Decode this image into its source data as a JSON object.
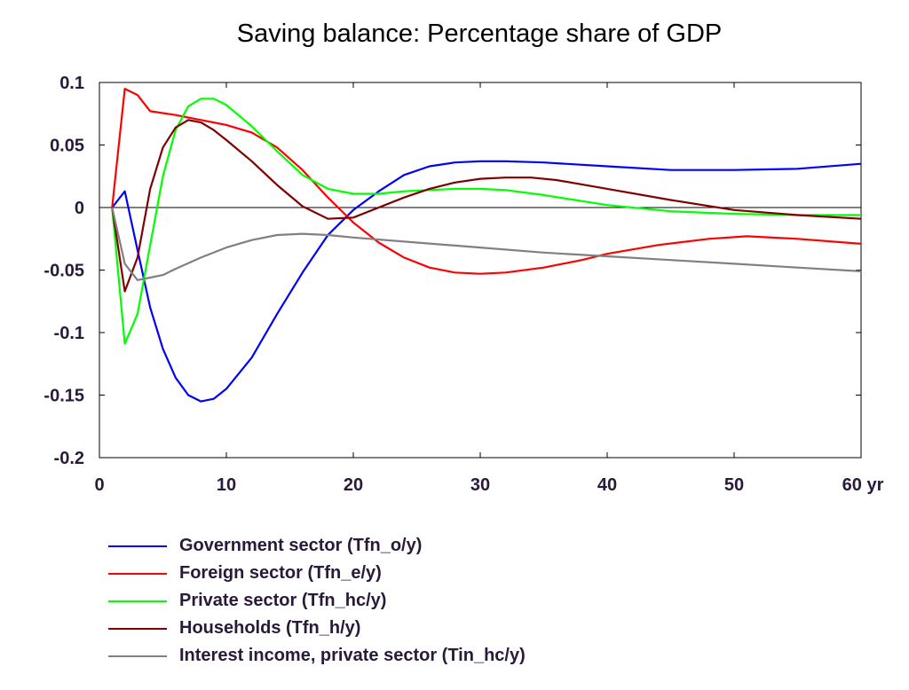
{
  "chart_data": {
    "type": "line",
    "title": "Saving balance: Percentage share of GDP",
    "xlabel": "",
    "ylabel": "",
    "xlim": [
      0,
      60
    ],
    "ylim": [
      -0.2,
      0.1
    ],
    "x_ticks": [
      "0",
      "10",
      "20",
      "30",
      "40",
      "50",
      "60 yr"
    ],
    "y_ticks": [
      "0.1",
      "0.05",
      "0",
      "-0.05",
      "-0.1",
      "-0.15",
      "-0.2"
    ],
    "legend_position": "bottom",
    "series": [
      {
        "name": "Government sector (Tfn_o/y)",
        "color": "#0000ff",
        "points": [
          [
            1,
            0
          ],
          [
            2,
            0.013
          ],
          [
            3,
            -0.034
          ],
          [
            4,
            -0.08
          ],
          [
            5,
            -0.113
          ],
          [
            6,
            -0.136
          ],
          [
            7,
            -0.15
          ],
          [
            8,
            -0.155
          ],
          [
            9,
            -0.153
          ],
          [
            10,
            -0.145
          ],
          [
            12,
            -0.12
          ],
          [
            14,
            -0.085
          ],
          [
            16,
            -0.052
          ],
          [
            18,
            -0.022
          ],
          [
            20,
            -0.002
          ],
          [
            22,
            0.013
          ],
          [
            24,
            0.026
          ],
          [
            26,
            0.033
          ],
          [
            28,
            0.036
          ],
          [
            30,
            0.037
          ],
          [
            32,
            0.037
          ],
          [
            35,
            0.036
          ],
          [
            40,
            0.033
          ],
          [
            45,
            0.03
          ],
          [
            50,
            0.03
          ],
          [
            55,
            0.031
          ],
          [
            60,
            0.035
          ]
        ]
      },
      {
        "name": "Foreign sector (Tfn_e/y)",
        "color": "#ff0000",
        "points": [
          [
            1,
            0
          ],
          [
            2,
            0.095
          ],
          [
            3,
            0.09
          ],
          [
            4,
            0.077
          ],
          [
            6,
            0.074
          ],
          [
            8,
            0.07
          ],
          [
            10,
            0.066
          ],
          [
            12,
            0.06
          ],
          [
            14,
            0.048
          ],
          [
            16,
            0.03
          ],
          [
            18,
            0.008
          ],
          [
            20,
            -0.012
          ],
          [
            22,
            -0.028
          ],
          [
            24,
            -0.04
          ],
          [
            26,
            -0.048
          ],
          [
            28,
            -0.052
          ],
          [
            30,
            -0.053
          ],
          [
            32,
            -0.052
          ],
          [
            35,
            -0.048
          ],
          [
            38,
            -0.042
          ],
          [
            40,
            -0.037
          ],
          [
            44,
            -0.03
          ],
          [
            48,
            -0.025
          ],
          [
            51,
            -0.023
          ],
          [
            55,
            -0.025
          ],
          [
            60,
            -0.029
          ]
        ]
      },
      {
        "name": "Private sector (Tfn_hc/y)",
        "color": "#00ff00",
        "points": [
          [
            1,
            0
          ],
          [
            2,
            -0.109
          ],
          [
            3,
            -0.085
          ],
          [
            4,
            -0.03
          ],
          [
            5,
            0.025
          ],
          [
            6,
            0.062
          ],
          [
            7,
            0.081
          ],
          [
            8,
            0.087
          ],
          [
            9,
            0.087
          ],
          [
            10,
            0.082
          ],
          [
            12,
            0.065
          ],
          [
            14,
            0.045
          ],
          [
            16,
            0.026
          ],
          [
            18,
            0.015
          ],
          [
            20,
            0.011
          ],
          [
            22,
            0.011
          ],
          [
            24,
            0.013
          ],
          [
            26,
            0.014
          ],
          [
            28,
            0.015
          ],
          [
            30,
            0.015
          ],
          [
            32,
            0.014
          ],
          [
            35,
            0.01
          ],
          [
            40,
            0.002
          ],
          [
            45,
            -0.003
          ],
          [
            50,
            -0.005
          ],
          [
            55,
            -0.006
          ],
          [
            60,
            -0.006
          ]
        ]
      },
      {
        "name": "Households (Tfn_h/y)",
        "color": "#800000",
        "points": [
          [
            1,
            0
          ],
          [
            2,
            -0.067
          ],
          [
            3,
            -0.04
          ],
          [
            4,
            0.015
          ],
          [
            5,
            0.048
          ],
          [
            6,
            0.064
          ],
          [
            7,
            0.07
          ],
          [
            8,
            0.068
          ],
          [
            9,
            0.062
          ],
          [
            10,
            0.054
          ],
          [
            12,
            0.037
          ],
          [
            14,
            0.018
          ],
          [
            16,
            0.001
          ],
          [
            18,
            -0.009
          ],
          [
            20,
            -0.008
          ],
          [
            22,
            0
          ],
          [
            24,
            0.008
          ],
          [
            26,
            0.015
          ],
          [
            28,
            0.02
          ],
          [
            30,
            0.023
          ],
          [
            32,
            0.024
          ],
          [
            34,
            0.024
          ],
          [
            36,
            0.022
          ],
          [
            40,
            0.015
          ],
          [
            45,
            0.006
          ],
          [
            50,
            -0.002
          ],
          [
            55,
            -0.006
          ],
          [
            60,
            -0.009
          ]
        ]
      },
      {
        "name": "Interest income, private sector (Tin_hc/y)",
        "color": "#808080",
        "points": [
          [
            1,
            0
          ],
          [
            2,
            -0.045
          ],
          [
            3,
            -0.058
          ],
          [
            4,
            -0.056
          ],
          [
            5,
            -0.054
          ],
          [
            6,
            -0.049
          ],
          [
            8,
            -0.04
          ],
          [
            10,
            -0.032
          ],
          [
            12,
            -0.026
          ],
          [
            14,
            -0.022
          ],
          [
            16,
            -0.021
          ],
          [
            18,
            -0.022
          ],
          [
            20,
            -0.024
          ],
          [
            25,
            -0.028
          ],
          [
            30,
            -0.032
          ],
          [
            35,
            -0.036
          ],
          [
            40,
            -0.039
          ],
          [
            45,
            -0.042
          ],
          [
            50,
            -0.045
          ],
          [
            55,
            -0.048
          ],
          [
            60,
            -0.051
          ]
        ]
      }
    ]
  }
}
